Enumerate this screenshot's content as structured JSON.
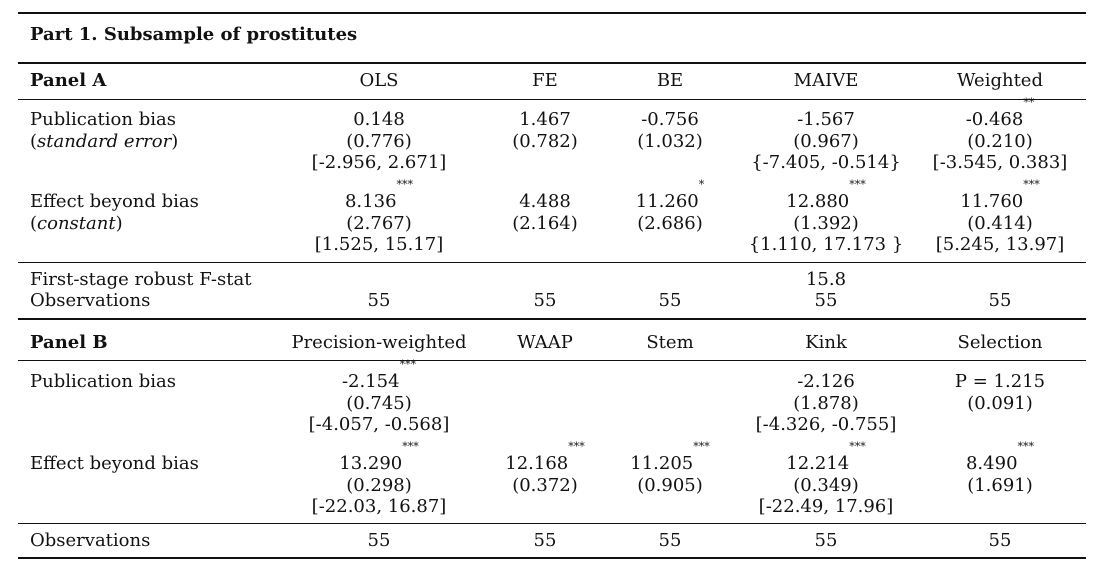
{
  "part_title": "Part 1. Subsample of prostitutes",
  "panel_a": {
    "title": "Panel A",
    "columns": [
      "OLS",
      "FE",
      "BE",
      "MAIVE",
      "Weighted"
    ],
    "rows": [
      {
        "label": "Publication bias",
        "sublabel": "standard error",
        "cells": [
          {
            "est": "0.148",
            "stars": "",
            "se": "(0.776)",
            "ci": "[-2.956, 2.671]"
          },
          {
            "est": "1.467",
            "stars": "",
            "se": "(0.782)",
            "ci": ""
          },
          {
            "est": "-0.756",
            "stars": "",
            "se": "(1.032)",
            "ci": ""
          },
          {
            "est": "-1.567",
            "stars": "",
            "se": "(0.967)",
            "ci": "{-7.405, -0.514}"
          },
          {
            "est": "-0.468",
            "stars": "**",
            "se": "(0.210)",
            "ci": "[-3.545, 0.383]"
          }
        ]
      },
      {
        "label": "Effect beyond bias",
        "sublabel": "constant",
        "cells": [
          {
            "est": "8.136",
            "stars": "***",
            "se": "(2.767)",
            "ci": "[1.525, 15.17]"
          },
          {
            "est": "4.488",
            "stars": "",
            "se": "(2.164)",
            "ci": ""
          },
          {
            "est": "11.260",
            "stars": "*",
            "se": "(2.686)",
            "ci": ""
          },
          {
            "est": "12.880",
            "stars": "***",
            "se": "(1.392)",
            "ci": "{1.110, 17.173 }"
          },
          {
            "est": "11.760",
            "stars": "***",
            "se": "(0.414)",
            "ci": "[5.245, 13.97]"
          }
        ]
      }
    ],
    "fstat_label": "First-stage robust F-stat",
    "fstat_value": "15.8",
    "obs_label": "Observations",
    "obs": [
      "55",
      "55",
      "55",
      "55",
      "55"
    ]
  },
  "panel_b": {
    "title": "Panel B",
    "columns": [
      "Precision-weighted",
      "WAAP",
      "Stem",
      "Kink",
      "Selection"
    ],
    "rows": [
      {
        "label": "Publication bias",
        "cells": [
          {
            "est": "-2.154",
            "stars": "***",
            "se": "(0.745)",
            "ci": "[-4.057, -0.568]"
          },
          {
            "est": "",
            "stars": "",
            "se": "",
            "ci": ""
          },
          {
            "est": "",
            "stars": "",
            "se": "",
            "ci": ""
          },
          {
            "est": "-2.126",
            "stars": "",
            "se": "(1.878)",
            "ci": "[-4.326, -0.755]"
          },
          {
            "est": "P = 1.215",
            "stars": "",
            "se": "(0.091)",
            "ci": ""
          }
        ]
      },
      {
        "label": "Effect beyond bias",
        "cells": [
          {
            "est": "13.290",
            "stars": "***",
            "se": "(0.298)",
            "ci": "[-22.03, 16.87]"
          },
          {
            "est": "12.168",
            "stars": "***",
            "se": "(0.372)",
            "ci": ""
          },
          {
            "est": "11.205",
            "stars": "***",
            "se": "(0.905)",
            "ci": ""
          },
          {
            "est": "12.214",
            "stars": "***",
            "se": "(0.349)",
            "ci": "[-22.49, 17.96]"
          },
          {
            "est": "8.490",
            "stars": "***",
            "se": "(1.691)",
            "ci": ""
          }
        ]
      }
    ],
    "obs_label": "Observations",
    "obs": [
      "55",
      "55",
      "55",
      "55",
      "55"
    ]
  }
}
